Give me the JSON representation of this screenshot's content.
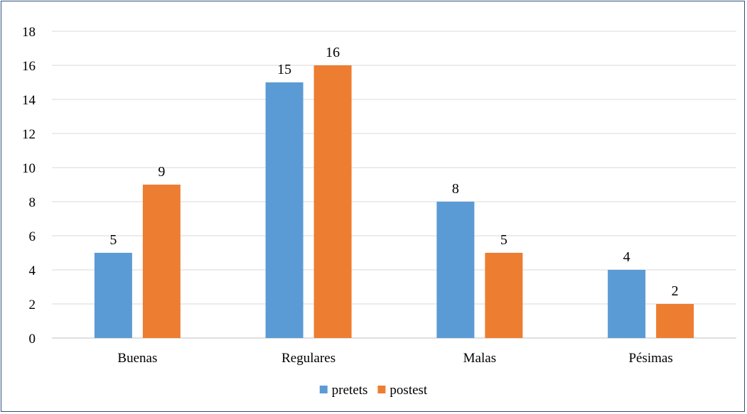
{
  "chart_data": {
    "type": "bar",
    "categories": [
      "Buenas",
      "Regulares",
      "Malas",
      "Pésimas"
    ],
    "series": [
      {
        "name": "pretets",
        "values": [
          5,
          15,
          8,
          4
        ],
        "color": "#5b9bd5"
      },
      {
        "name": "postest",
        "values": [
          9,
          16,
          5,
          2
        ],
        "color": "#ed7d31"
      }
    ],
    "yticks": [
      "0",
      "2",
      "4",
      "6",
      "8",
      "10",
      "12",
      "14",
      "16",
      "18"
    ],
    "ylim": [
      0,
      18
    ],
    "grid": true,
    "legend_position": "bottom"
  }
}
